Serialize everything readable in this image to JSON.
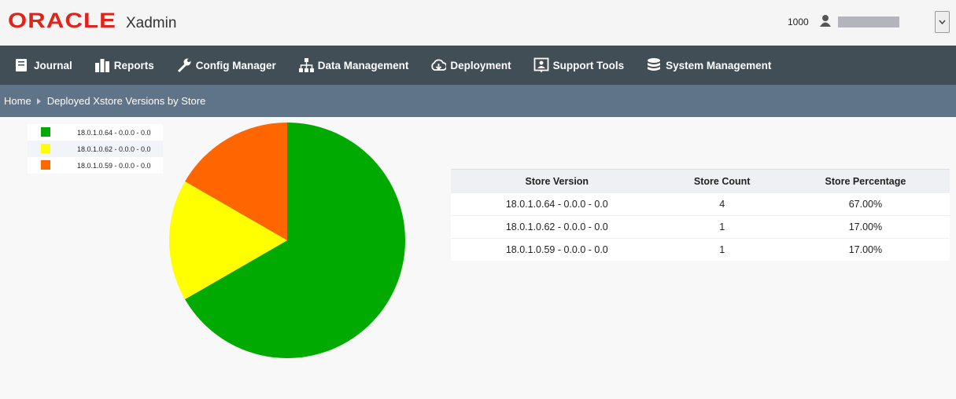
{
  "header": {
    "logo": "ORACLE",
    "app": "Xadmin",
    "user_id": "1000"
  },
  "nav": [
    "Journal",
    "Reports",
    "Config Manager",
    "Data Management",
    "Deployment",
    "Support Tools",
    "System Management"
  ],
  "breadcrumb": [
    "Home",
    "Deployed Xstore Versions by Store"
  ],
  "chart_data": {
    "type": "pie",
    "categories": [
      "18.0.1.0.64 - 0.0.0 - 0.0",
      "18.0.1.0.62 - 0.0.0 - 0.0",
      "18.0.1.0.59 - 0.0.0 - 0.0"
    ],
    "values": [
      4,
      1,
      1
    ],
    "colors": [
      "#00aa00",
      "#ffff00",
      "#ff6600"
    ]
  },
  "table": {
    "columns": [
      "Store Version",
      "Store Count",
      "Store Percentage"
    ],
    "rows": [
      [
        "18.0.1.0.64 - 0.0.0 - 0.0",
        4,
        "67.00%"
      ],
      [
        "18.0.1.0.62 - 0.0.0 - 0.0",
        1,
        "17.00%"
      ],
      [
        "18.0.1.0.59 - 0.0.0 - 0.0",
        1,
        "17.00%"
      ]
    ]
  }
}
